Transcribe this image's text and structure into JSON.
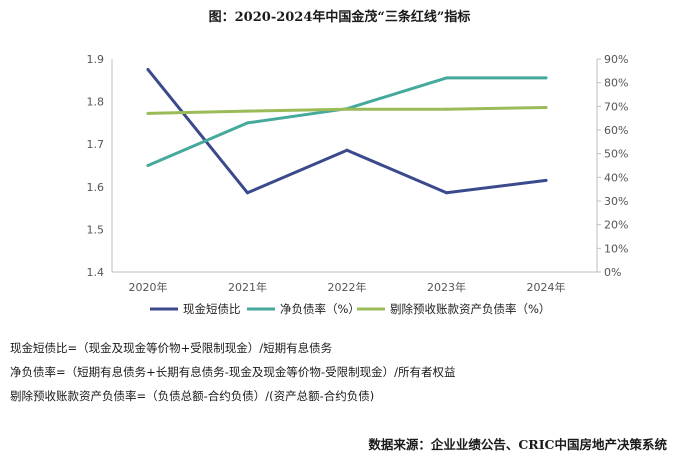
{
  "chart_data": {
    "type": "line",
    "title": "图：2020-2024年中国金茂“三条红线”指标",
    "categories": [
      "2020年",
      "2021年",
      "2022年",
      "2023年",
      "2024年"
    ],
    "y_left": {
      "ylim": [
        1.4,
        1.9
      ],
      "ticks": [
        "1.9",
        "1.8",
        "1.7",
        "1.6",
        "1.5",
        "1.4"
      ]
    },
    "y_right": {
      "ylim": [
        0,
        90
      ],
      "ticks": [
        "90%",
        "80%",
        "70%",
        "60%",
        "50%",
        "40%",
        "30%",
        "20%",
        "10%",
        "0%"
      ]
    },
    "series": [
      {
        "name": "现金短债比",
        "axis": "left",
        "color": "#3b4a8c",
        "values": [
          1.875,
          1.586,
          1.686,
          1.586,
          1.615
        ]
      },
      {
        "name": "净负债率（%）",
        "axis": "right",
        "color": "#45a99b",
        "values": [
          45,
          63,
          69,
          82,
          82
        ]
      },
      {
        "name": "剔除预收账款资产负债率（%）",
        "axis": "right",
        "color": "#9bbb59",
        "values": [
          67,
          68,
          68.8,
          68.8,
          69.5
        ]
      }
    ]
  },
  "notes": [
    "现金短债比=（现金及现金等价物+受限制现金）/短期有息债务",
    "净负债率=（短期有息债务+长期有息债务-现金及现金等价物-受限制现金）/所有者权益",
    "剔除预收账款资产负债率=（负债总额-合约负债）/(资产总额-合约负债)"
  ],
  "source": "数据来源：企业业绩公告、CRIC中国房地产决策系统"
}
